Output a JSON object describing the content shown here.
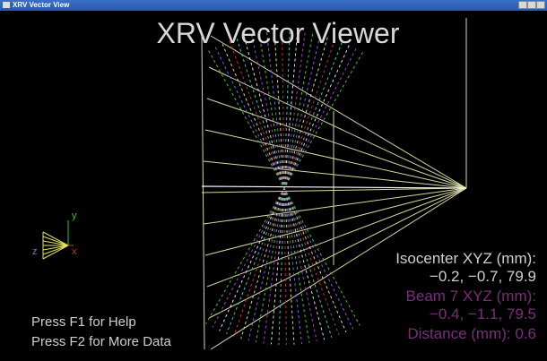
{
  "window": {
    "title": "XRV Vector View"
  },
  "viewer": {
    "title": "XRV Vector Viewer"
  },
  "axes": {
    "y": "y",
    "z": "z",
    "x": "x"
  },
  "info": {
    "isocenter_label": "Isocenter XYZ (mm):",
    "isocenter_value": "−0.2, −0.7, 79.9",
    "beam_label": "Beam 7 XYZ (mm):",
    "beam_value": "−0.4, −1.1, 79.5",
    "distance": "Distance (mm): 0.6"
  },
  "help": [
    "Press F1 for Help",
    "Press F2 for More Data"
  ]
}
